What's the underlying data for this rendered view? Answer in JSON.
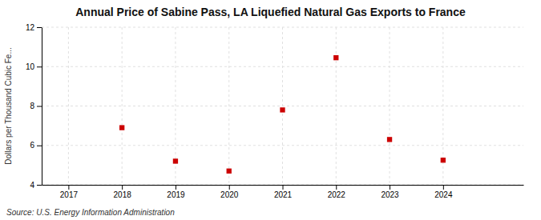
{
  "chart_data": {
    "type": "scatter",
    "title": "Annual Price of Sabine Pass, LA  Liquefied Natural Gas Exports to France",
    "ylabel": "Dollars per Thousand Cubic Fe...",
    "annotations": [
      "Source: U.S. Energy Information Administration"
    ],
    "x": [
      2018,
      2019,
      2020,
      2021,
      2022,
      2023,
      2024
    ],
    "values": [
      6.9,
      5.2,
      4.7,
      7.8,
      10.45,
      6.3,
      5.25
    ],
    "color": "#cc0000",
    "marker": "square",
    "xlim": [
      2016.5,
      2025.5
    ],
    "ylim": [
      4,
      12
    ],
    "xticks": [
      2017,
      2018,
      2019,
      2020,
      2021,
      2022,
      2023,
      2024
    ],
    "yticks": [
      4,
      6,
      8,
      10,
      12
    ],
    "grid": true
  }
}
